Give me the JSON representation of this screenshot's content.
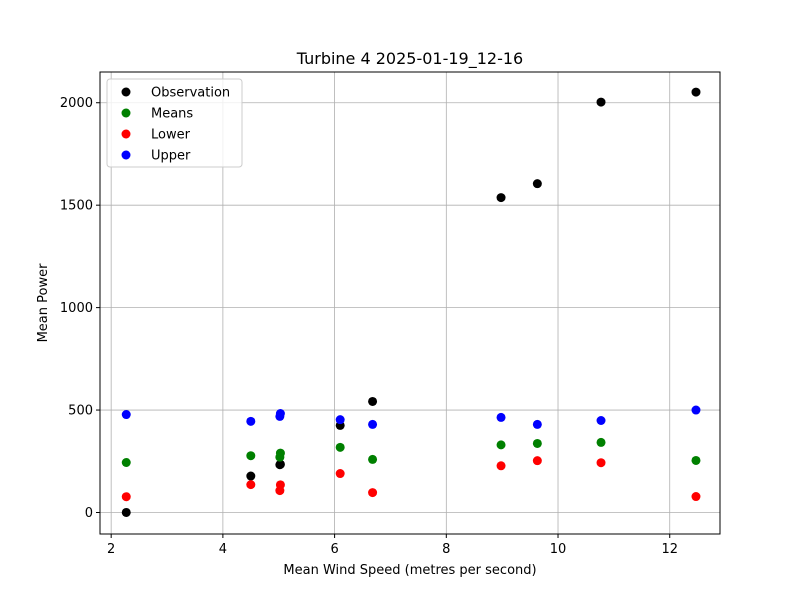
{
  "chart_data": {
    "type": "scatter",
    "title": "Turbine 4 2025-01-19_12-16",
    "xlabel": "Mean Wind Speed (metres per second)",
    "ylabel": "Mean Power",
    "xlim": [
      1.8,
      12.9
    ],
    "ylim": [
      -105,
      2150
    ],
    "xticks": [
      2,
      4,
      6,
      8,
      10,
      12
    ],
    "yticks": [
      0,
      500,
      1000,
      1500,
      2000
    ],
    "grid": true,
    "legend_position": "top-left",
    "x": [
      2.27,
      4.5,
      5.02,
      5.03,
      6.1,
      6.68,
      8.98,
      9.63,
      10.77,
      12.47
    ],
    "series": [
      {
        "name": "Observation",
        "color": "#000000",
        "values": [
          0,
          178,
          233,
          235,
          425,
          542,
          1537,
          1605,
          2003,
          2052
        ]
      },
      {
        "name": "Means",
        "color": "#008000",
        "values": [
          244,
          277,
          270,
          290,
          318,
          259,
          330,
          337,
          342,
          254
        ]
      },
      {
        "name": "Lower",
        "color": "#ff0000",
        "values": [
          77,
          136,
          107,
          135,
          190,
          97,
          228,
          253,
          243,
          78
        ]
      },
      {
        "name": "Upper",
        "color": "#0000ff",
        "values": [
          478,
          445,
          469,
          483,
          453,
          430,
          464,
          430,
          449,
          500
        ]
      }
    ]
  }
}
